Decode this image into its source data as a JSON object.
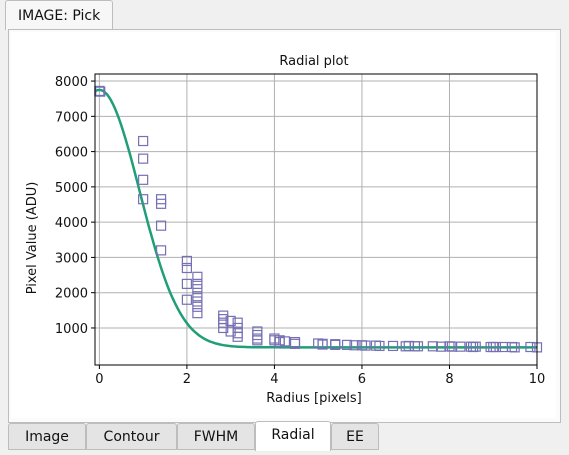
{
  "top_tab": {
    "label": "IMAGE: Pick"
  },
  "bottom_tabs": [
    {
      "label": "Image"
    },
    {
      "label": "Contour"
    },
    {
      "label": "FWHM"
    },
    {
      "label": "Radial",
      "active": true
    },
    {
      "label": "EE"
    }
  ],
  "colors": {
    "curve": "#1f9e77",
    "points": "#7570b3",
    "grid": "#b0b0b0"
  },
  "chart_data": {
    "type": "scatter",
    "title": "Radial plot",
    "xlabel": "Radius [pixels]",
    "ylabel": "Pixel Value (ADU)",
    "xlim": [
      -0.1,
      10
    ],
    "ylim": [
      -50,
      8200
    ],
    "xticks": [
      0,
      2,
      4,
      6,
      8,
      10
    ],
    "yticks": [
      1000,
      2000,
      3000,
      4000,
      5000,
      6000,
      7000,
      8000
    ],
    "grid": true,
    "series": [
      {
        "kind": "points",
        "x": [
          0,
          0.02,
          1,
          1,
          1,
          1,
          1.41,
          1.41,
          1.41,
          1.41,
          2,
          2,
          2,
          2,
          2.24,
          2.24,
          2.24,
          2.24,
          2.24,
          2.24,
          2.24,
          2.83,
          2.83,
          2.83,
          2.83,
          3,
          3,
          3.16,
          3.16,
          3.16,
          3.16,
          3.61,
          3.61,
          3.61,
          3.61,
          4,
          4,
          4.12,
          4.12,
          4.24,
          4.47,
          4.47,
          5,
          5.1,
          5.1,
          5.39,
          5.39,
          5.66,
          5.83,
          6,
          6.08,
          6.32,
          6.4,
          6.71,
          7,
          7.07,
          7.21,
          7.28,
          7.62,
          7.81,
          8,
          8.06,
          8.25,
          8.49,
          8.54,
          8.6,
          8.94,
          9,
          9.06,
          9.22,
          9.43,
          9.49,
          9.85,
          10
        ],
        "y": [
          7720,
          7700,
          6300,
          5800,
          5200,
          4650,
          4650,
          4520,
          3900,
          3200,
          2900,
          2700,
          2250,
          1800,
          2450,
          2250,
          2100,
          1900,
          1750,
          1600,
          1420,
          1350,
          1250,
          1150,
          1000,
          1200,
          900,
          1150,
          1000,
          850,
          750,
          900,
          800,
          700,
          650,
          700,
          650,
          650,
          600,
          620,
          600,
          550,
          560,
          550,
          530,
          540,
          520,
          520,
          510,
          510,
          500,
          500,
          490,
          490,
          480,
          490,
          480,
          480,
          480,
          470,
          480,
          470,
          470,
          470,
          460,
          470,
          460,
          460,
          460,
          460,
          460,
          450,
          460,
          450
        ]
      },
      {
        "kind": "fit",
        "model": "gaussian",
        "amplitude": 7300,
        "sigma": 0.92,
        "background": 450
      }
    ]
  }
}
